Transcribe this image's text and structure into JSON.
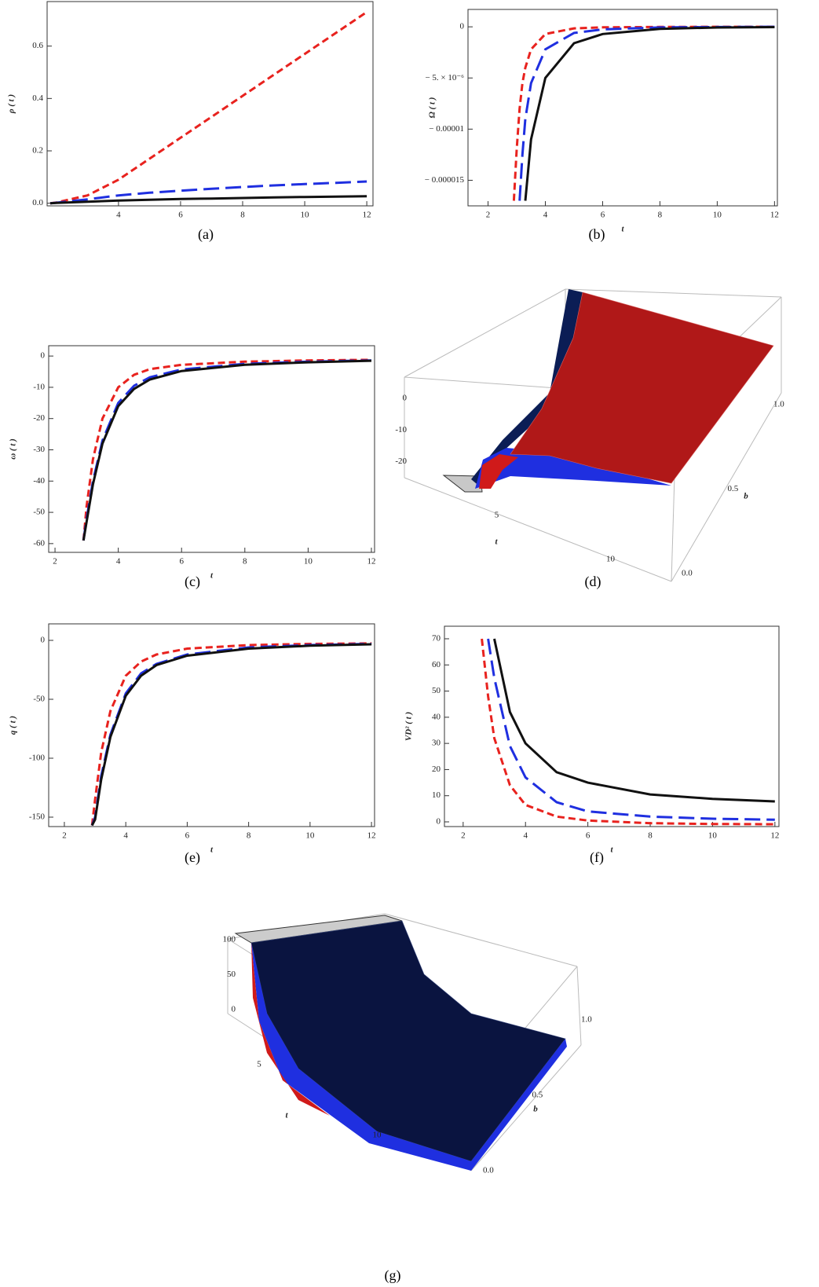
{
  "chart_data": [
    {
      "type": "line",
      "caption": "(a)",
      "ylabel": "ρ ( t )",
      "x": [
        1.8,
        2,
        3,
        4,
        5,
        6,
        7,
        8,
        9,
        10,
        11,
        12
      ],
      "series": [
        {
          "color": "#e8221e",
          "line_style": "dashed",
          "values": [
            0,
            0.003,
            0.03,
            0.09,
            0.17,
            0.25,
            0.33,
            0.41,
            0.49,
            0.57,
            0.65,
            0.73
          ]
        },
        {
          "color": "#1f2fe0",
          "line_style": "long-dashed",
          "values": [
            0,
            0.002,
            0.015,
            0.03,
            0.04,
            0.048,
            0.055,
            0.062,
            0.068,
            0.073,
            0.078,
            0.083
          ]
        },
        {
          "color": "#111111",
          "line_style": "solid",
          "values": [
            0,
            0.001,
            0.006,
            0.01,
            0.013,
            0.016,
            0.018,
            0.02,
            0.022,
            0.024,
            0.025,
            0.027
          ]
        }
      ],
      "xlim": [
        1.7,
        12.2
      ],
      "xticks": [
        4,
        6,
        8,
        10,
        12
      ],
      "ylim": [
        -0.01,
        0.77
      ],
      "yticks": [
        {
          "value": 0,
          "label": "0.0"
        },
        0.2,
        0.4,
        0.6
      ]
    },
    {
      "type": "line",
      "caption": "(b)",
      "ylabel": "Ω ( t )",
      "xlabel": "t",
      "x": [
        2.9,
        3,
        3.1,
        3.2,
        3.3,
        3.5,
        4,
        5,
        6,
        8,
        10,
        12
      ],
      "series": [
        {
          "color": "#e8221e",
          "line_style": "dashed",
          "values": [
            -1.7e-05,
            -1.2e-05,
            -8e-06,
            -5.5e-06,
            -4e-06,
            -2.2e-06,
            -7e-07,
            -1.5e-07,
            -5e-08,
            -1e-08,
            0,
            0
          ]
        },
        {
          "color": "#1f2fe0",
          "line_style": "long-dashed",
          "values": [
            null,
            null,
            -1.7e-05,
            -1.25e-05,
            -9e-06,
            -5.5e-06,
            -2.2e-06,
            -6e-07,
            -2.5e-07,
            -6e-08,
            -2e-08,
            0
          ]
        },
        {
          "color": "#111111",
          "line_style": "solid",
          "values": [
            null,
            null,
            null,
            null,
            -1.7e-05,
            -1.1e-05,
            -5e-06,
            -1.6e-06,
            -7e-07,
            -2e-07,
            -7e-08,
            -3e-08
          ]
        }
      ],
      "xlim": [
        1.3,
        12.1
      ],
      "xticks": [
        2,
        4,
        6,
        8,
        10,
        12
      ],
      "ylim": [
        -1.75e-05,
        1.7e-06
      ],
      "yticks": [
        0,
        {
          "value": -5e-06,
          "label": "− 5. × 10⁻⁶"
        },
        {
          "value": -1e-05,
          "label": "− 0.00001"
        },
        {
          "value": -1.5e-05,
          "label": "− 0.000015"
        }
      ]
    },
    {
      "type": "line",
      "caption": "(c)",
      "ylabel": "ω ( t )",
      "xlabel": "t",
      "x": [
        2.9,
        3,
        3.2,
        3.5,
        4,
        4.5,
        5,
        6,
        8,
        10,
        12
      ],
      "series": [
        {
          "color": "#e8221e",
          "line_style": "dashed",
          "values": [
            -59,
            -48,
            -33,
            -20,
            -10,
            -6,
            -4.2,
            -2.8,
            -1.8,
            -1.4,
            -1.2
          ]
        },
        {
          "color": "#1f2fe0",
          "line_style": "long-dashed",
          "values": [
            -59,
            -52,
            -40,
            -27,
            -15,
            -9.5,
            -6.8,
            -4.3,
            -2.5,
            -1.8,
            -1.4
          ]
        },
        {
          "color": "#111111",
          "line_style": "solid",
          "values": [
            -59,
            -53,
            -41,
            -28,
            -16,
            -10.5,
            -7.5,
            -4.8,
            -2.8,
            -2,
            -1.5
          ]
        }
      ],
      "xlim": [
        1.8,
        12.1
      ],
      "xticks": [
        2,
        4,
        6,
        8,
        10,
        12
      ],
      "ylim": [
        -62.8,
        3.3
      ],
      "yticks": [
        0,
        -10,
        -20,
        -30,
        -40,
        -50,
        -60
      ]
    },
    {
      "type": "surface3d",
      "caption": "(d)",
      "xlabel": "t",
      "ylabel": "b",
      "xlim": [
        2.5,
        12.5
      ],
      "xticks": [
        5,
        10
      ],
      "ylim": [
        0,
        1
      ],
      "yticks": [
        {
          "value": 0,
          "label": "0.0"
        },
        0.5,
        {
          "value": 1,
          "label": "1.0"
        }
      ],
      "zlim": [
        -28,
        0
      ],
      "zticks": [
        0,
        -10,
        -20
      ]
    },
    {
      "type": "line",
      "caption": "(e)",
      "ylabel": "q ( t )",
      "xlabel": "t",
      "x": [
        2.9,
        3,
        3.2,
        3.5,
        4,
        4.5,
        5,
        6,
        8,
        10,
        12
      ],
      "series": [
        {
          "color": "#e8221e",
          "line_style": "dashed",
          "values": [
            -157,
            -135,
            -95,
            -60,
            -30,
            -18,
            -12,
            -7,
            -4,
            -3,
            -2.5
          ]
        },
        {
          "color": "#1f2fe0",
          "line_style": "long-dashed",
          "values": [
            -157,
            -150,
            -115,
            -80,
            -45,
            -28,
            -20,
            -12,
            -6,
            -4,
            -3
          ]
        },
        {
          "color": "#111111",
          "line_style": "solid",
          "values": [
            -157,
            -152,
            -118,
            -82,
            -47,
            -30,
            -21,
            -13,
            -7,
            -4.5,
            -3.3
          ]
        }
      ],
      "xlim": [
        1.49,
        12.1
      ],
      "xticks": [
        2,
        4,
        6,
        8,
        10,
        12
      ],
      "ylim": [
        -158,
        14
      ],
      "yticks": [
        0,
        -50,
        -100,
        -150
      ]
    },
    {
      "type": "line",
      "caption": "(f)",
      "ylabel": "VD² ( t )",
      "xlabel": "t",
      "x": [
        2.6,
        2.8,
        3,
        3.5,
        4,
        5,
        6,
        8,
        10,
        12
      ],
      "series": [
        {
          "color": "#e8221e",
          "line_style": "dashed",
          "values": [
            70,
            48,
            32,
            14,
            6.5,
            2,
            0.5,
            -0.5,
            -0.8,
            -0.9
          ]
        },
        {
          "color": "#1f2fe0",
          "line_style": "long-dashed",
          "values": [
            null,
            70,
            55,
            29,
            17,
            7.5,
            4,
            2,
            1.2,
            0.8
          ]
        },
        {
          "color": "#111111",
          "line_style": "solid",
          "values": [
            null,
            null,
            70,
            42,
            30,
            19,
            15,
            10.5,
            8.8,
            7.8
          ]
        }
      ],
      "xlim": [
        1.4,
        12.13
      ],
      "xticks": [
        2,
        4,
        6,
        8,
        10,
        12
      ],
      "ylim": [
        -1.8,
        74.8
      ],
      "yticks": [
        0,
        10,
        20,
        30,
        40,
        50,
        60,
        70
      ]
    },
    {
      "type": "surface3d",
      "caption": "(g)",
      "xlabel": "t",
      "ylabel": "b",
      "xlim": [
        2.5,
        12.5
      ],
      "xticks": [
        5,
        10
      ],
      "ylim": [
        0,
        1
      ],
      "yticks": [
        {
          "value": 0,
          "label": "0.0"
        },
        0.5,
        {
          "value": 1,
          "label": "1.0"
        }
      ],
      "zlim": [
        0,
        100
      ],
      "zticks": [
        100,
        50,
        0
      ]
    }
  ]
}
